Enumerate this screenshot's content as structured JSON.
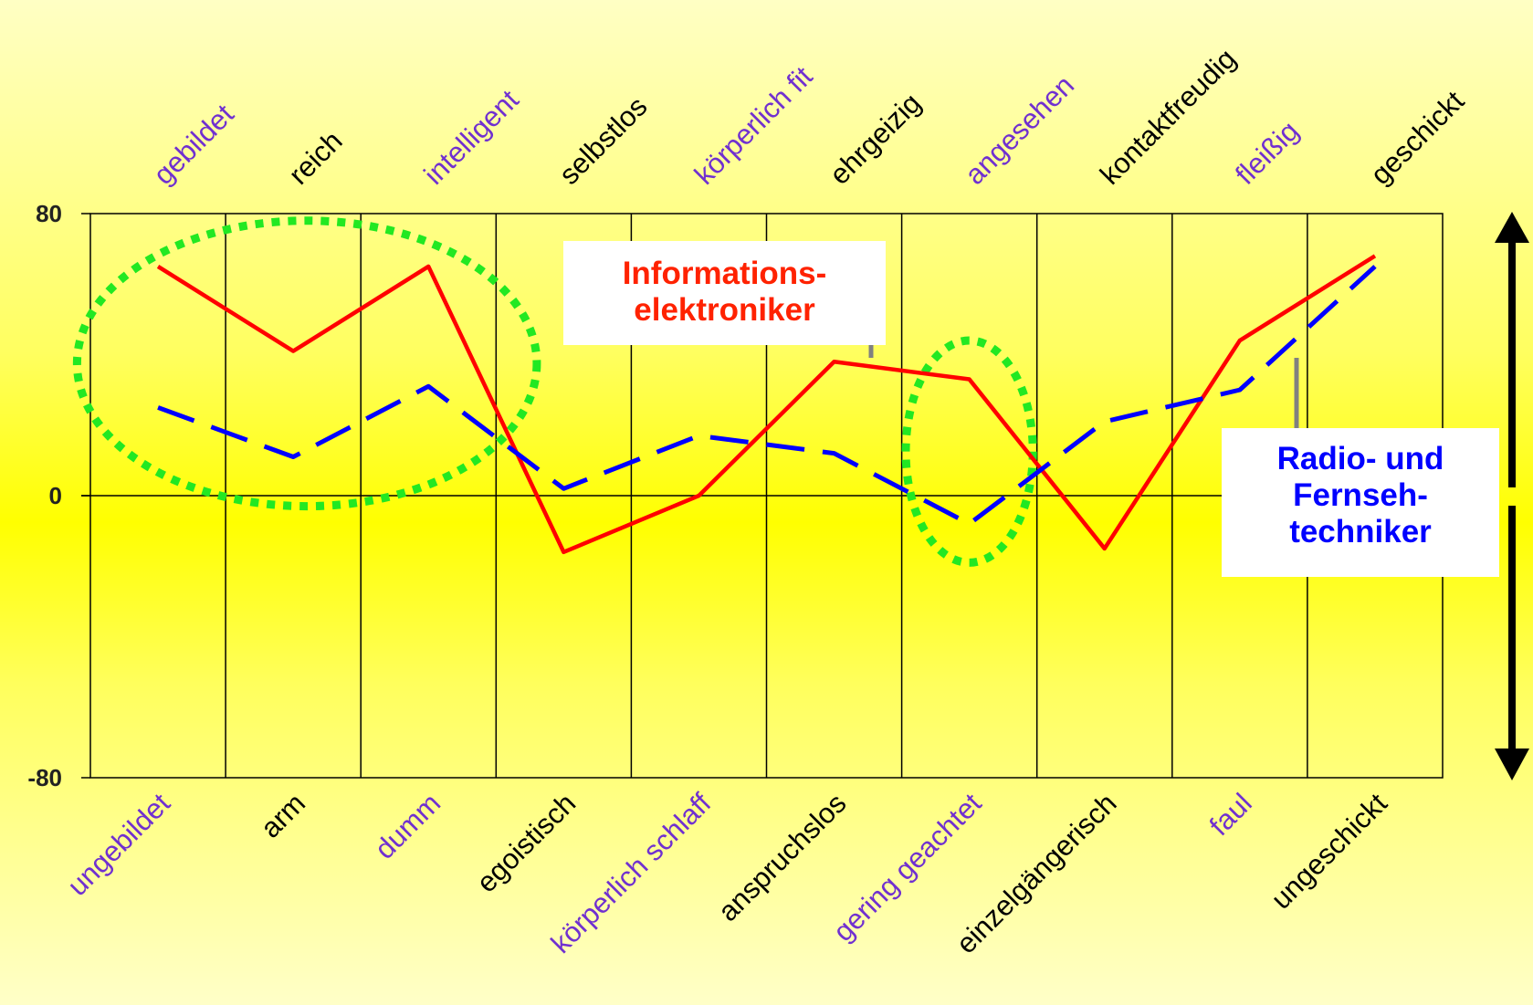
{
  "chart_data": {
    "type": "line",
    "categories_top": [
      "gebildet",
      "reich",
      "intelligent",
      "selbstlos",
      "körperlich fit",
      "ehrgeizig",
      "angesehen",
      "kontaktfreudig",
      "fleißig",
      "geschickt"
    ],
    "categories_bottom": [
      "ungebildet",
      "arm",
      "dumm",
      "egoistisch",
      "körperlich schlaff",
      "anspruchslos",
      "gering geachtet",
      "einzelgängerisch",
      "faul",
      "ungeschickt"
    ],
    "category_colors": [
      "#7030d0",
      "#000000",
      "#7030d0",
      "#000000",
      "#7030d0",
      "#000000",
      "#7030d0",
      "#000000",
      "#7030d0",
      "#000000"
    ],
    "y_ticks": [
      "80",
      "0",
      "-80"
    ],
    "ylim": [
      -80,
      80
    ],
    "series": [
      {
        "name": "Informations-elektroniker",
        "label_lines": [
          "Informations-",
          "elektroniker"
        ],
        "color": "#ff0000",
        "dash": "solid",
        "values": [
          65,
          41,
          65,
          -16,
          0,
          38,
          33,
          -15,
          44,
          68
        ]
      },
      {
        "name": "Radio- und Fernseh-techniker",
        "label_lines": [
          "Radio- und",
          "Fernseh-",
          "techniker"
        ],
        "color": "#0000ff",
        "dash": "dashed",
        "values": [
          25,
          11,
          31,
          2,
          17,
          12,
          -8,
          21,
          30,
          65
        ]
      }
    ],
    "highlight_color": "#22e822",
    "grid": true
  }
}
